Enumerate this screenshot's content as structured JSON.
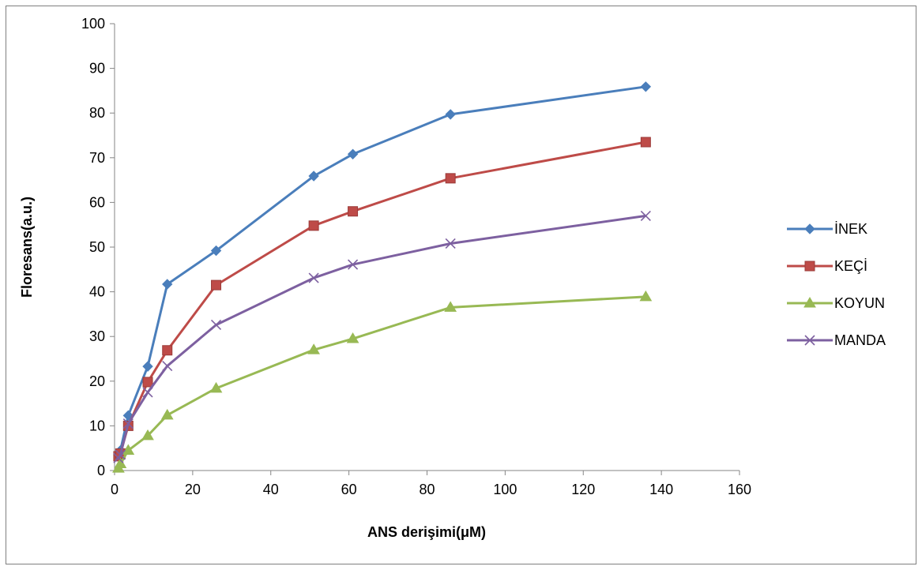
{
  "chart_data": {
    "type": "line",
    "xlabel": "ANS derişimi(μM)",
    "ylabel": "Floresans(a.u.)",
    "xlim": [
      0,
      160
    ],
    "ylim": [
      0,
      100
    ],
    "xticks": [
      0,
      20,
      40,
      60,
      80,
      100,
      120,
      140,
      160
    ],
    "yticks": [
      0,
      10,
      20,
      30,
      40,
      50,
      60,
      70,
      80,
      90,
      100
    ],
    "grid": false,
    "legend": "right",
    "x": [
      1,
      1.5,
      3.5,
      8.5,
      13.5,
      26,
      51,
      61,
      86,
      136
    ],
    "series": [
      {
        "name": "İNEK",
        "color": "#4a7ebb",
        "marker": "diamond",
        "values": [
          3.5,
          4.5,
          12.3,
          23.3,
          41.7,
          49.2,
          65.9,
          70.8,
          79.7,
          85.9
        ]
      },
      {
        "name": "KEÇİ",
        "color": "#be4b48",
        "marker": "square",
        "values": [
          3.2,
          3.8,
          10.0,
          19.8,
          26.9,
          41.5,
          54.8,
          58.0,
          65.4,
          73.5
        ]
      },
      {
        "name": "KOYUN",
        "color": "#98b954",
        "marker": "triangle",
        "values": [
          0.5,
          1.5,
          4.5,
          7.8,
          12.4,
          18.4,
          27.0,
          29.5,
          36.5,
          38.9
        ]
      },
      {
        "name": "MANDA",
        "color": "#7d60a0",
        "marker": "x",
        "values": [
          2.8,
          3.5,
          10.5,
          17.5,
          23.4,
          32.6,
          43.1,
          46.1,
          50.8,
          57.0
        ]
      }
    ]
  }
}
